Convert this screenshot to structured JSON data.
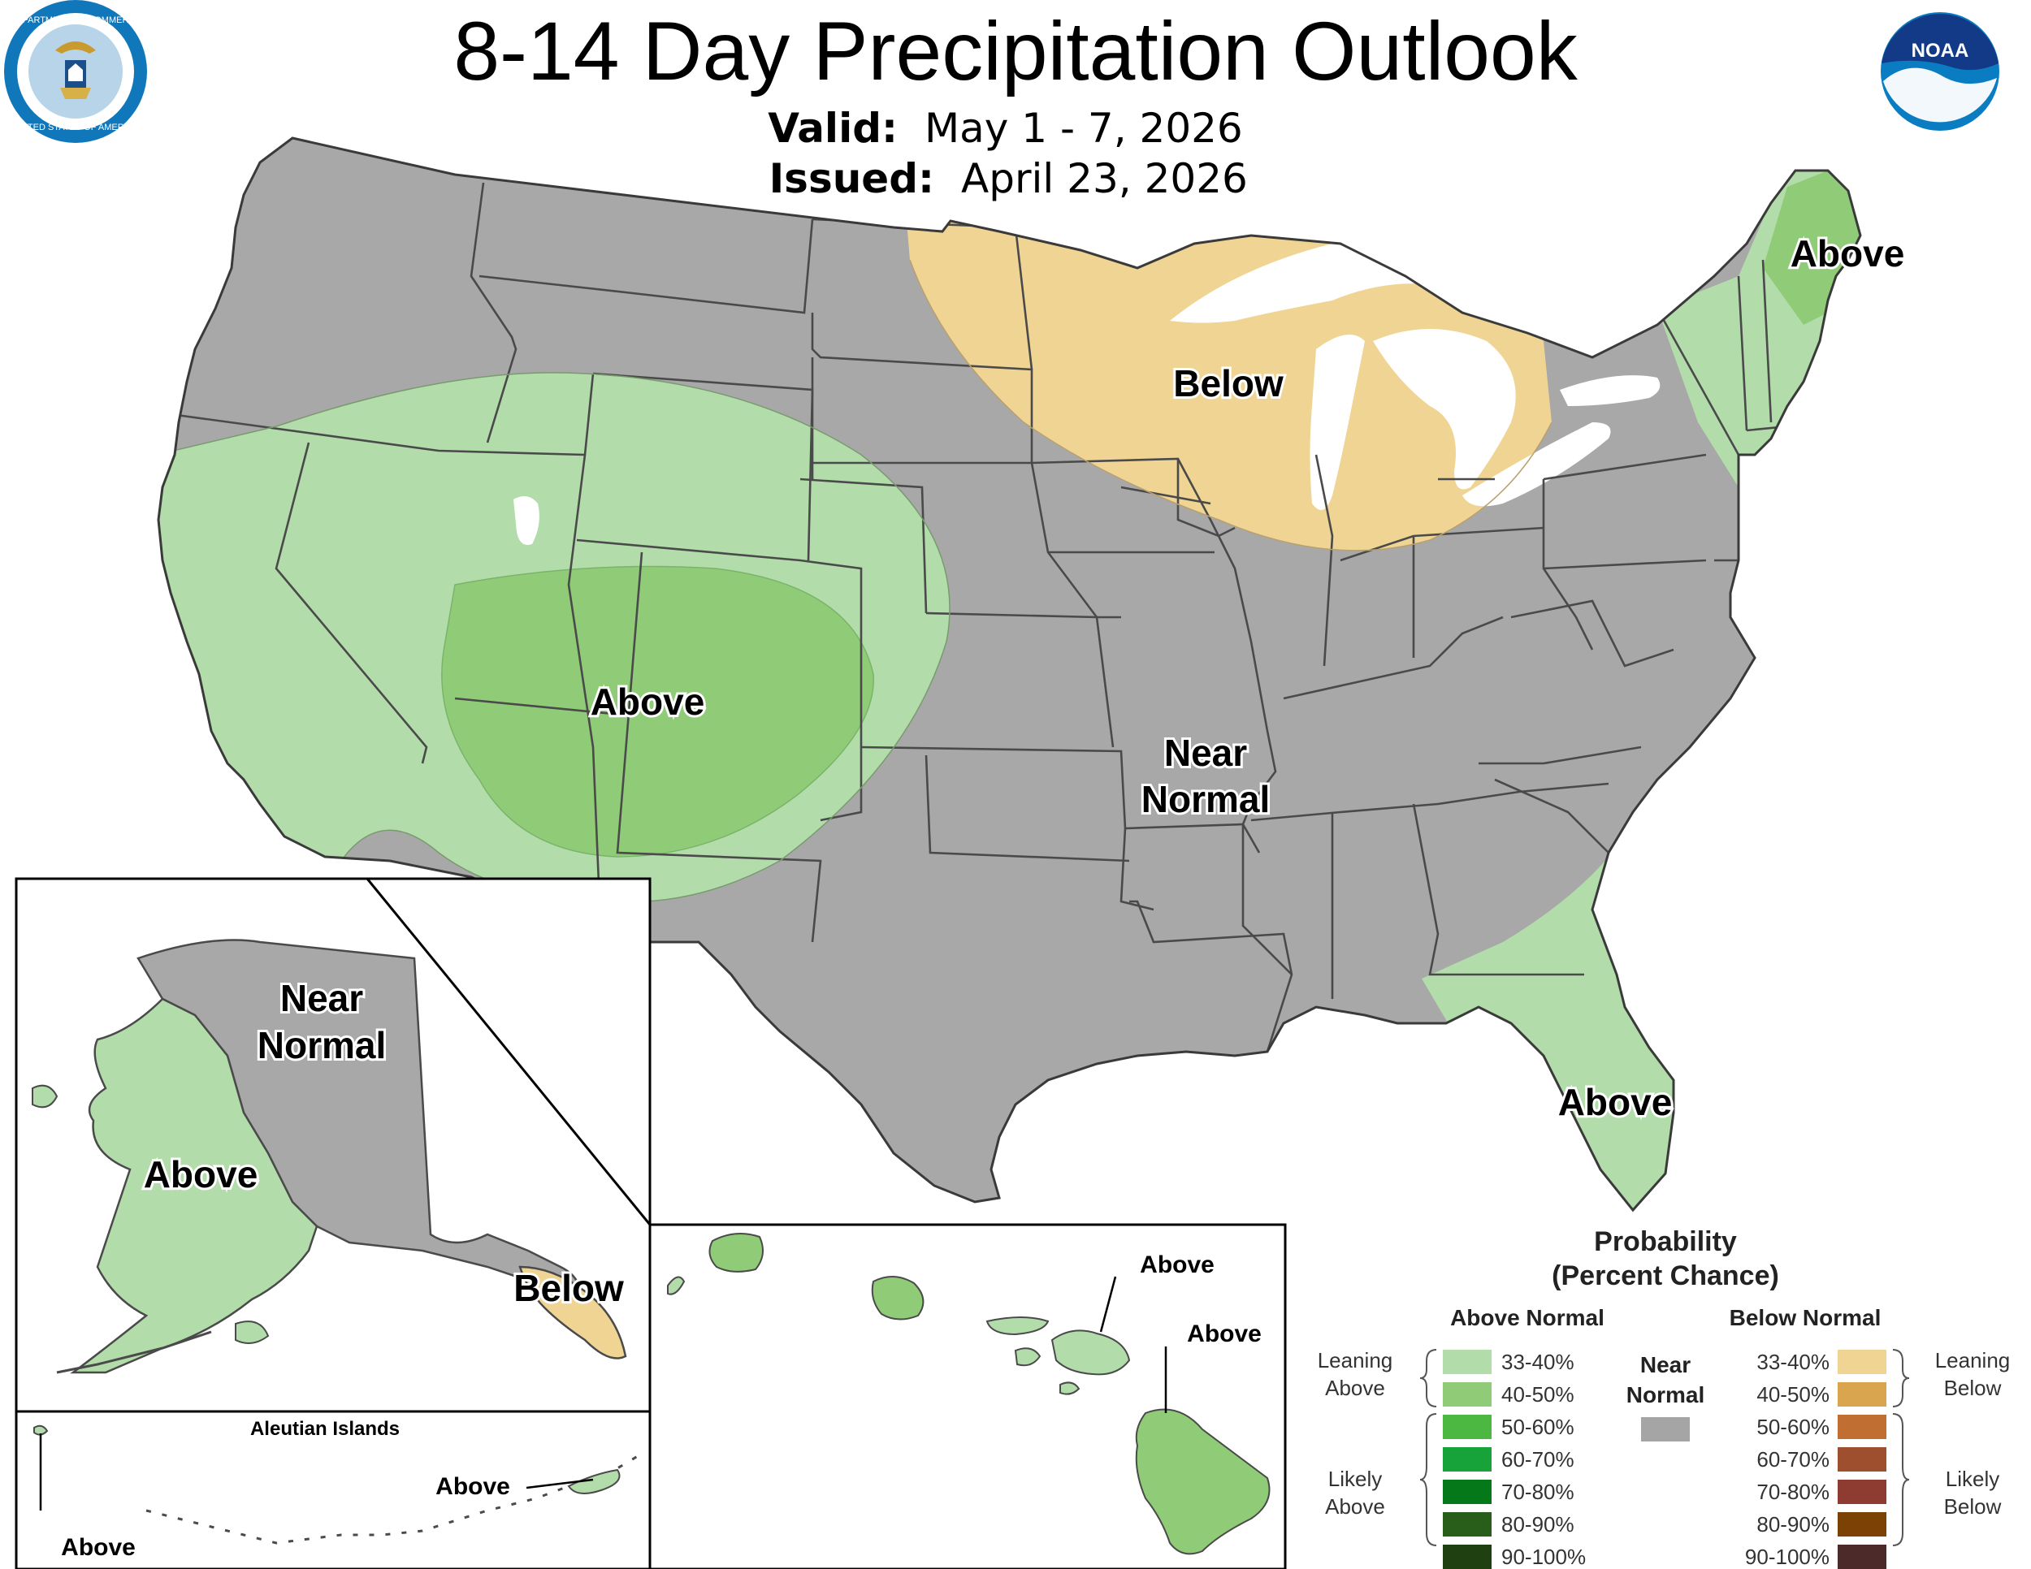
{
  "header": {
    "title": "8-14 Day Precipitation Outlook",
    "valid_label": "Valid:",
    "valid_value": "May 1 - 7, 2026",
    "issued_label": "Issued:",
    "issued_value": "April 23, 2026"
  },
  "logos": {
    "commerce_icon": "department-of-commerce-seal",
    "commerce_text_top": "DEPARTMENT OF COMMERCE",
    "commerce_text_bottom": "UNITED STATES OF AMERICA",
    "noaa_icon": "noaa-logo",
    "noaa_text": "NOAA"
  },
  "map_labels": {
    "conus_west": "Above",
    "conus_below": "Below",
    "conus_maine": "Above",
    "conus_near_line1": "Near",
    "conus_near_line2": "Normal",
    "conus_florida": "Above",
    "alaska_near_line1": "Near",
    "alaska_near_line2": "Normal",
    "alaska_above": "Above",
    "alaska_below": "Below",
    "aleutian_title": "Aleutian Islands",
    "aleutian_above_east": "Above",
    "aleutian_above_west": "Above",
    "hawaii_above_1": "Above",
    "hawaii_above_2": "Above"
  },
  "legend": {
    "title_line1": "Probability",
    "title_line2": "(Percent Chance)",
    "above_header": "Above Normal",
    "below_header": "Below Normal",
    "near_line1": "Near",
    "near_line2": "Normal",
    "near_color": "#a5a5a5",
    "leaning_above_line1": "Leaning",
    "leaning_above_line2": "Above",
    "likely_above_line1": "Likely",
    "likely_above_line2": "Above",
    "leaning_below_line1": "Leaning",
    "leaning_below_line2": "Below",
    "likely_below_line1": "Likely",
    "likely_below_line2": "Below",
    "above": [
      {
        "label": "33-40%",
        "color": "#b2dcaa"
      },
      {
        "label": "40-50%",
        "color": "#90cc78"
      },
      {
        "label": "50-60%",
        "color": "#4cb842"
      },
      {
        "label": "60-70%",
        "color": "#17a23a"
      },
      {
        "label": "70-80%",
        "color": "#05791a"
      },
      {
        "label": "80-90%",
        "color": "#285e1a"
      },
      {
        "label": "90-100%",
        "color": "#1f4010"
      }
    ],
    "below": [
      {
        "label": "33-40%",
        "color": "#f0d493"
      },
      {
        "label": "40-50%",
        "color": "#d9a54f"
      },
      {
        "label": "50-60%",
        "color": "#c06e32"
      },
      {
        "label": "60-70%",
        "color": "#9e4f2d"
      },
      {
        "label": "70-80%",
        "color": "#8e3c31"
      },
      {
        "label": "80-90%",
        "color": "#7c4105"
      },
      {
        "label": "90-100%",
        "color": "#4d2a2a"
      }
    ]
  },
  "colors": {
    "near_normal": "#a8a8a8",
    "above_33_40": "#b2dcaa",
    "above_40_50": "#90cc78",
    "below_33_40": "#f0d493",
    "border": "#4a4a4a",
    "water": "#ffffff",
    "noaa_blue": "#0a7dc2"
  }
}
